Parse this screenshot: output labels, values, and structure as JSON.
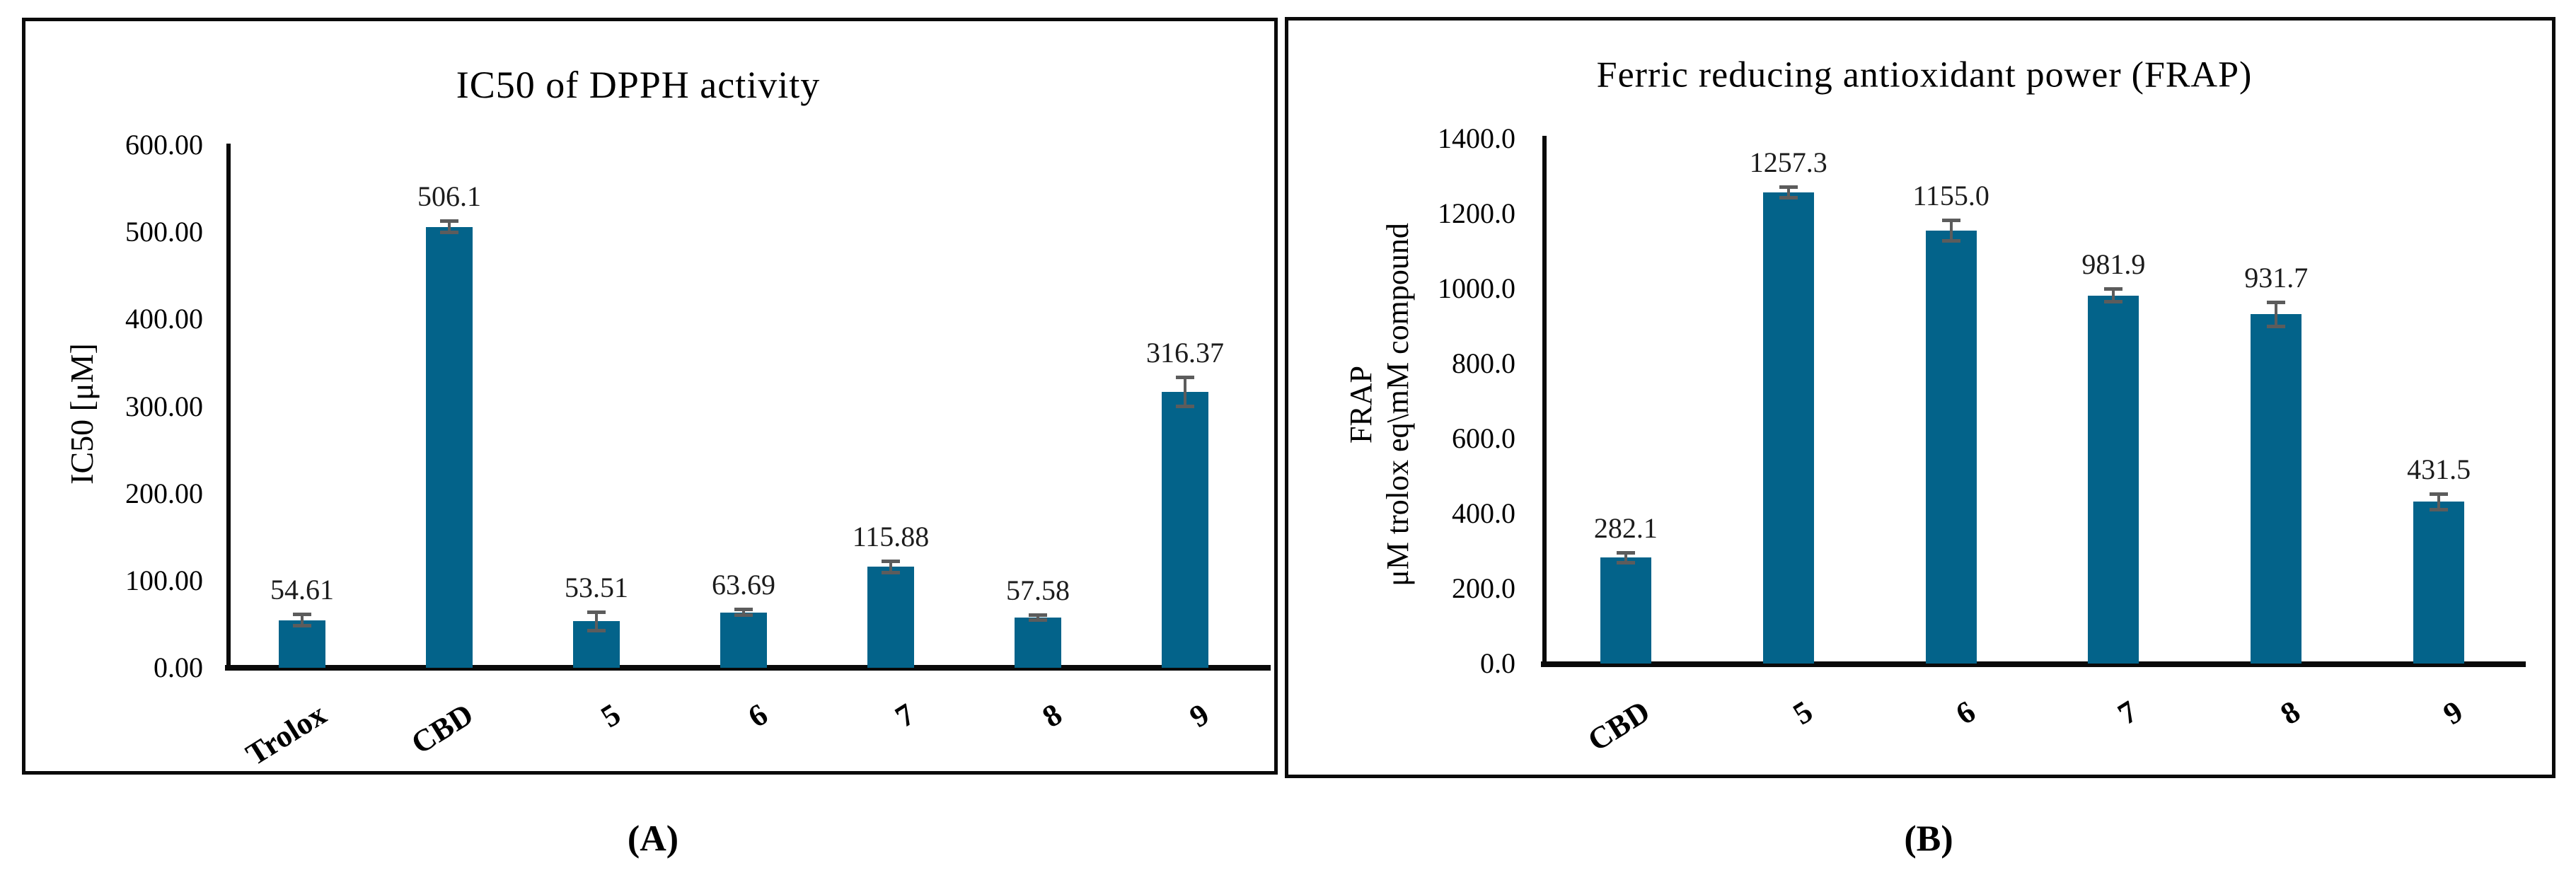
{
  "panels": [
    {
      "label": "(A)"
    },
    {
      "label": "(B)"
    }
  ],
  "chart_data": [
    {
      "type": "bar",
      "title": "IC50 of DPPH activity",
      "ylabel": "IC50 [μM]",
      "categories": [
        "Trolox",
        "CBD",
        "5",
        "6",
        "7",
        "8",
        "9"
      ],
      "values": [
        54.61,
        506.1,
        53.51,
        63.69,
        115.88,
        57.58,
        316.37
      ],
      "value_labels": [
        "54.61",
        "506.1",
        "53.51",
        "63.69",
        "115.88",
        "57.58",
        "316.37"
      ],
      "errors": [
        7,
        7,
        11,
        4,
        7,
        3,
        17
      ],
      "ylim": [
        0,
        600
      ],
      "ytick_step": 100,
      "ytick_labels": [
        "0.00",
        "100.00",
        "200.00",
        "300.00",
        "400.00",
        "500.00",
        "600.00"
      ],
      "grid": false,
      "legend": null,
      "bar_color": "#03638a",
      "error_color": "#5c5c5c"
    },
    {
      "type": "bar",
      "title": "Ferric reducing antioxidant power (FRAP)",
      "ylabel_lines": [
        "FRAP",
        "μM trolox eq\\mM compound"
      ],
      "categories": [
        "CBD",
        "5",
        "6",
        "7",
        "8",
        "9"
      ],
      "values": [
        282.1,
        1257.3,
        1155.0,
        981.9,
        931.7,
        431.5
      ],
      "value_labels": [
        "282.1",
        "1257.3",
        "1155.0",
        "981.9",
        "931.7",
        "431.5"
      ],
      "errors": [
        15,
        15,
        28,
        18,
        33,
        22
      ],
      "ylim": [
        0,
        1400
      ],
      "ytick_step": 200,
      "ytick_labels": [
        "0.0",
        "200.0",
        "400.0",
        "600.0",
        "800.0",
        "1000.0",
        "1200.0",
        "1400.0"
      ],
      "grid": false,
      "legend": null,
      "bar_color": "#03638a",
      "error_color": "#5c5c5c"
    }
  ]
}
